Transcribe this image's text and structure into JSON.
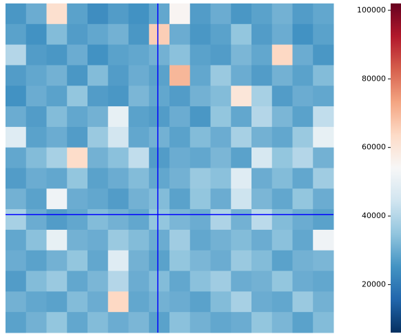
{
  "chart_data": {
    "type": "heatmap",
    "colormap": [
      "#053061",
      "#2166ac",
      "#4393c3",
      "#92c5de",
      "#d1e5f0",
      "#f7f7f7",
      "#fddbc7",
      "#f4a582",
      "#d6604d",
      "#b2182b",
      "#67001f"
    ],
    "clim": [
      6000,
      102000
    ],
    "cticks": [
      20000,
      40000,
      60000,
      80000,
      100000
    ],
    "crosshair": {
      "x": 7.43,
      "y": 10.26,
      "color": "#0000ff"
    },
    "xlim": [
      0,
      16
    ],
    "ylim": [
      0,
      16
    ],
    "values": [
      [
        26000,
        30000,
        62000,
        28000,
        24000,
        27000,
        25000,
        29000,
        55000,
        27000,
        30000,
        26000,
        28000,
        31000,
        27000,
        29000
      ],
      [
        28000,
        25000,
        33000,
        27000,
        29000,
        31000,
        26000,
        66000,
        30000,
        26000,
        28000,
        35000,
        27000,
        30000,
        25000,
        28000
      ],
      [
        40000,
        27000,
        26000,
        30000,
        25000,
        28000,
        29000,
        31000,
        34000,
        28000,
        27000,
        32000,
        29000,
        64000,
        30000,
        26000
      ],
      [
        27000,
        29000,
        31000,
        26000,
        33000,
        27000,
        30000,
        28000,
        70000,
        29000,
        36000,
        30000,
        27000,
        31000,
        28000,
        33000
      ],
      [
        25000,
        30000,
        28000,
        35000,
        27000,
        26000,
        32000,
        29000,
        27000,
        31000,
        33000,
        60000,
        38000,
        27000,
        30000,
        29000
      ],
      [
        30000,
        27000,
        33000,
        29000,
        31000,
        50000,
        28000,
        27000,
        30000,
        26000,
        35000,
        29000,
        40000,
        32000,
        28000,
        42000
      ],
      [
        48000,
        28000,
        30000,
        27000,
        36000,
        45000,
        29000,
        31000,
        28000,
        33000,
        30000,
        38000,
        31000,
        29000,
        36000,
        50000
      ],
      [
        29000,
        33000,
        38000,
        63000,
        31000,
        34000,
        42000,
        27000,
        30000,
        29000,
        32000,
        28000,
        46000,
        35000,
        40000,
        31000
      ],
      [
        27000,
        30000,
        29000,
        35000,
        28000,
        30000,
        33000,
        29000,
        31000,
        36000,
        34000,
        48000,
        30000,
        33000,
        29000,
        37000
      ],
      [
        31000,
        28000,
        52000,
        30000,
        29000,
        27000,
        31000,
        33000,
        28000,
        35000,
        30000,
        44000,
        32000,
        29000,
        35000,
        30000
      ],
      [
        38000,
        30000,
        27000,
        29000,
        33000,
        31000,
        29000,
        35000,
        32000,
        30000,
        39000,
        31000,
        41000,
        33000,
        30000,
        28000
      ],
      [
        29000,
        34000,
        50000,
        31000,
        30000,
        36000,
        33000,
        30000,
        37000,
        29000,
        31000,
        33000,
        30000,
        34000,
        29000,
        52000
      ],
      [
        30000,
        28000,
        31000,
        35000,
        29000,
        48000,
        31000,
        28000,
        35000,
        32000,
        30000,
        36000,
        33000,
        28000,
        31000,
        32000
      ],
      [
        27000,
        33000,
        36000,
        29000,
        32000,
        40000,
        30000,
        33000,
        29000,
        34000,
        37000,
        30000,
        31000,
        35000,
        30000,
        29000
      ],
      [
        31000,
        29000,
        28000,
        33000,
        30000,
        64000,
        29000,
        31000,
        30000,
        28000,
        33000,
        38000,
        30000,
        29000,
        36000,
        31000
      ],
      [
        28000,
        31000,
        35000,
        29000,
        33000,
        30000,
        32000,
        28000,
        34000,
        31000,
        29000,
        30000,
        35000,
        32000,
        28000,
        33000
      ]
    ]
  }
}
